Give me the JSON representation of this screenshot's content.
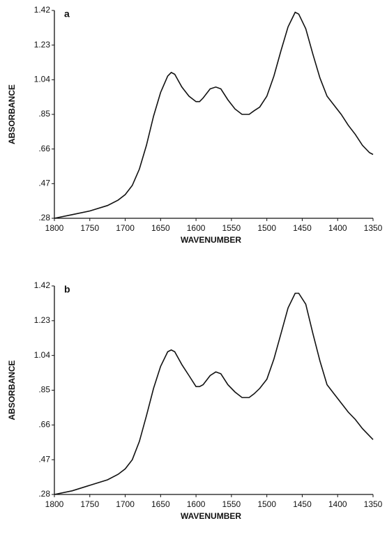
{
  "chart_data": [
    {
      "type": "line",
      "title": "a",
      "xlabel": "WAVENUMBER",
      "ylabel": "ABSORBANCE",
      "xlim": [
        1800,
        1350
      ],
      "xticks": [
        1800,
        1750,
        1700,
        1650,
        1600,
        1550,
        1500,
        1450,
        1400,
        1350
      ],
      "ylim": [
        0.28,
        1.42
      ],
      "yticks": [
        {
          "value": 0.28,
          "label": ".28"
        },
        {
          "value": 0.47,
          "label": ".47"
        },
        {
          "value": 0.66,
          "label": ".66"
        },
        {
          "value": 0.85,
          "label": ".85"
        },
        1.04,
        1.23,
        1.42
      ],
      "x": [
        1800,
        1775,
        1750,
        1725,
        1710,
        1700,
        1690,
        1680,
        1670,
        1660,
        1650,
        1640,
        1635,
        1630,
        1620,
        1610,
        1600,
        1595,
        1590,
        1580,
        1572,
        1565,
        1555,
        1545,
        1535,
        1525,
        1518,
        1510,
        1500,
        1490,
        1480,
        1470,
        1460,
        1455,
        1445,
        1435,
        1425,
        1415,
        1405,
        1395,
        1385,
        1375,
        1365,
        1355,
        1350
      ],
      "series": [
        {
          "color": "#111111",
          "values": [
            0.28,
            0.3,
            0.32,
            0.35,
            0.38,
            0.41,
            0.46,
            0.55,
            0.68,
            0.84,
            0.97,
            1.06,
            1.08,
            1.07,
            1.0,
            0.95,
            0.92,
            0.92,
            0.94,
            0.99,
            1.0,
            0.99,
            0.93,
            0.88,
            0.85,
            0.85,
            0.87,
            0.89,
            0.95,
            1.06,
            1.2,
            1.33,
            1.41,
            1.4,
            1.32,
            1.18,
            1.05,
            0.95,
            0.9,
            0.85,
            0.79,
            0.74,
            0.68,
            0.64,
            0.63
          ]
        }
      ]
    },
    {
      "type": "line",
      "title": "b",
      "xlabel": "WAVENUMBER",
      "ylabel": "ABSORBANCE",
      "xlim": [
        1800,
        1350
      ],
      "xticks": [
        1800,
        1750,
        1700,
        1650,
        1600,
        1550,
        1500,
        1450,
        1400,
        1350
      ],
      "ylim": [
        0.28,
        1.42
      ],
      "yticks": [
        {
          "value": 0.28,
          "label": ".28"
        },
        {
          "value": 0.47,
          "label": ".47"
        },
        {
          "value": 0.66,
          "label": ".66"
        },
        {
          "value": 0.85,
          "label": ".85"
        },
        1.04,
        1.23,
        1.42
      ],
      "x": [
        1800,
        1775,
        1750,
        1725,
        1710,
        1700,
        1690,
        1680,
        1670,
        1660,
        1650,
        1640,
        1635,
        1630,
        1620,
        1610,
        1600,
        1595,
        1590,
        1580,
        1572,
        1565,
        1555,
        1545,
        1535,
        1525,
        1518,
        1510,
        1500,
        1490,
        1480,
        1470,
        1460,
        1455,
        1445,
        1435,
        1425,
        1415,
        1405,
        1395,
        1385,
        1375,
        1365,
        1355,
        1350
      ],
      "series": [
        {
          "color": "#111111",
          "values": [
            0.28,
            0.3,
            0.33,
            0.36,
            0.39,
            0.42,
            0.47,
            0.57,
            0.71,
            0.86,
            0.98,
            1.06,
            1.07,
            1.06,
            0.99,
            0.93,
            0.87,
            0.87,
            0.88,
            0.93,
            0.95,
            0.94,
            0.88,
            0.84,
            0.81,
            0.81,
            0.83,
            0.86,
            0.91,
            1.02,
            1.16,
            1.3,
            1.38,
            1.38,
            1.32,
            1.16,
            1.01,
            0.88,
            0.83,
            0.78,
            0.73,
            0.69,
            0.64,
            0.6,
            0.58
          ]
        }
      ]
    }
  ]
}
